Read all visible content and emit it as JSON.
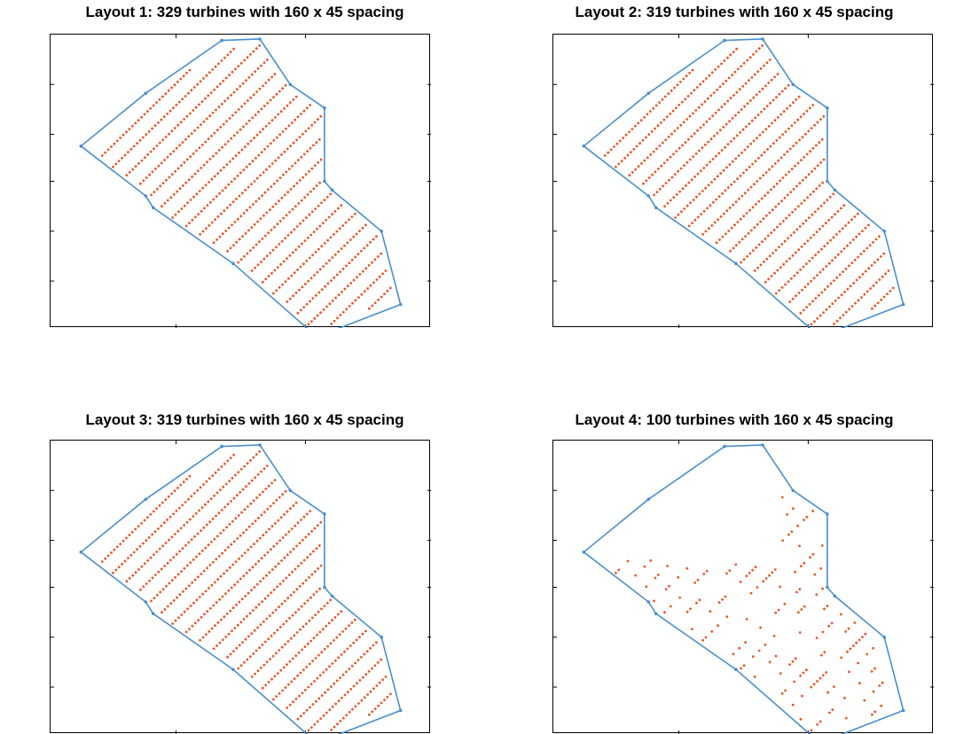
{
  "colors": {
    "boundary": "#4a8fcb",
    "turbine": "#e8572a",
    "axes": "#000000",
    "background": "#ffffff"
  },
  "chart_data": [
    {
      "type": "scatter",
      "title": "Layout 1: 329 turbines with 160 x 45 spacing",
      "xlabel": "",
      "ylabel": "",
      "xlim": [
        0,
        100
      ],
      "ylim": [
        0,
        100
      ],
      "boundary": [
        [
          45,
          98
        ],
        [
          55,
          98.5
        ],
        [
          63,
          83
        ],
        [
          72,
          75
        ],
        [
          72,
          50
        ],
        [
          74,
          47
        ],
        [
          87,
          33
        ],
        [
          92,
          8
        ],
        [
          70,
          -3
        ],
        [
          48,
          22
        ],
        [
          27,
          41
        ],
        [
          25,
          45
        ],
        [
          8,
          62
        ],
        [
          25,
          80
        ],
        [
          45,
          98
        ]
      ],
      "turbine_count": 329
    },
    {
      "type": "scatter",
      "title": "Layout 2: 319 turbines with 160 x 45 spacing",
      "xlabel": "",
      "ylabel": "",
      "xlim": [
        0,
        100
      ],
      "ylim": [
        0,
        100
      ],
      "boundary": [
        [
          45,
          98
        ],
        [
          55,
          98.5
        ],
        [
          63,
          83
        ],
        [
          72,
          75
        ],
        [
          72,
          50
        ],
        [
          74,
          47
        ],
        [
          87,
          33
        ],
        [
          92,
          8
        ],
        [
          70,
          -3
        ],
        [
          48,
          22
        ],
        [
          27,
          41
        ],
        [
          25,
          45
        ],
        [
          8,
          62
        ],
        [
          25,
          80
        ],
        [
          45,
          98
        ]
      ],
      "turbine_count": 319
    },
    {
      "type": "scatter",
      "title": "Layout 3: 319 turbines with 160 x 45 spacing",
      "xlabel": "",
      "ylabel": "",
      "xlim": [
        0,
        100
      ],
      "ylim": [
        0,
        100
      ],
      "boundary": [
        [
          45,
          98
        ],
        [
          55,
          98.5
        ],
        [
          63,
          83
        ],
        [
          72,
          75
        ],
        [
          72,
          50
        ],
        [
          74,
          47
        ],
        [
          87,
          33
        ],
        [
          92,
          8
        ],
        [
          70,
          -3
        ],
        [
          48,
          22
        ],
        [
          27,
          41
        ],
        [
          25,
          45
        ],
        [
          8,
          62
        ],
        [
          25,
          80
        ],
        [
          45,
          98
        ]
      ],
      "turbine_count": 319
    },
    {
      "type": "scatter",
      "title": "Layout 4: 100 turbines with 160 x 45 spacing",
      "xlabel": "",
      "ylabel": "",
      "xlim": [
        0,
        100
      ],
      "ylim": [
        0,
        100
      ],
      "boundary": [
        [
          45,
          98
        ],
        [
          55,
          98.5
        ],
        [
          63,
          83
        ],
        [
          72,
          75
        ],
        [
          72,
          50
        ],
        [
          74,
          47
        ],
        [
          87,
          33
        ],
        [
          92,
          8
        ],
        [
          70,
          -3
        ],
        [
          48,
          22
        ],
        [
          27,
          41
        ],
        [
          25,
          45
        ],
        [
          8,
          62
        ],
        [
          25,
          80
        ],
        [
          45,
          98
        ]
      ],
      "turbine_count": 100
    }
  ]
}
